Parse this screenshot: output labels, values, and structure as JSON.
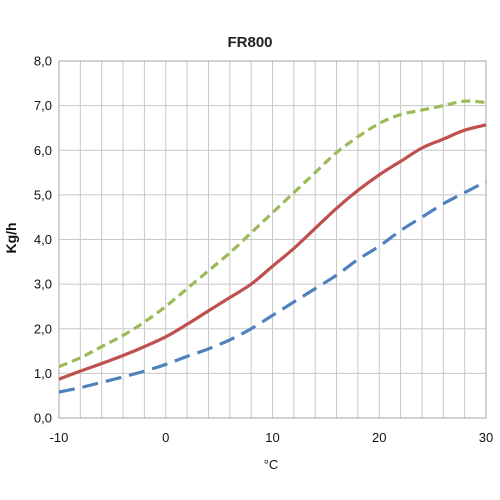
{
  "chart_data": {
    "type": "line",
    "title": "FR800",
    "xlabel": "°C",
    "ylabel": "Kg/h",
    "xlim": [
      -10,
      30
    ],
    "ylim": [
      0,
      8
    ],
    "x_ticks": [
      -10,
      0,
      10,
      20,
      30
    ],
    "x_tick_labels": [
      "-10",
      "0",
      "10",
      "20",
      "30"
    ],
    "y_ticks": [
      0,
      1,
      2,
      3,
      4,
      5,
      6,
      7,
      8
    ],
    "y_tick_labels": [
      "0,0",
      "1,0",
      "2,0",
      "3,0",
      "4,0",
      "5,0",
      "6,0",
      "7,0",
      "8,0"
    ],
    "grid": true,
    "x_minor_grid_step": 2,
    "legend": "none",
    "series": [
      {
        "color": "#9bbb59",
        "style": "dashed",
        "x": [
          -10,
          -8,
          -6,
          -4,
          -2,
          0,
          2,
          4,
          6,
          8,
          10,
          12,
          14,
          16,
          18,
          20,
          22,
          24,
          26,
          28,
          30
        ],
        "y": [
          1.15,
          1.35,
          1.6,
          1.85,
          2.15,
          2.5,
          2.9,
          3.3,
          3.7,
          4.15,
          4.6,
          5.05,
          5.5,
          5.95,
          6.3,
          6.6,
          6.8,
          6.9,
          7.0,
          7.1,
          7.07
        ]
      },
      {
        "color": "#c0504d",
        "style": "solid",
        "x": [
          -10,
          -8,
          -6,
          -4,
          -2,
          0,
          2,
          4,
          6,
          8,
          10,
          12,
          14,
          16,
          18,
          20,
          22,
          24,
          26,
          28,
          30
        ],
        "y": [
          0.87,
          1.05,
          1.22,
          1.4,
          1.6,
          1.82,
          2.1,
          2.4,
          2.7,
          3.0,
          3.4,
          3.8,
          4.25,
          4.7,
          5.1,
          5.45,
          5.75,
          6.05,
          6.25,
          6.45,
          6.57
        ]
      },
      {
        "color": "#4f81bd",
        "style": "dashed",
        "x": [
          -10,
          -8,
          -6,
          -4,
          -2,
          0,
          2,
          4,
          6,
          8,
          10,
          12,
          14,
          16,
          18,
          20,
          22,
          24,
          26,
          28,
          30
        ],
        "y": [
          0.58,
          0.68,
          0.8,
          0.92,
          1.05,
          1.2,
          1.38,
          1.55,
          1.75,
          2.0,
          2.3,
          2.6,
          2.9,
          3.2,
          3.55,
          3.85,
          4.2,
          4.5,
          4.8,
          5.05,
          5.3
        ]
      }
    ]
  }
}
